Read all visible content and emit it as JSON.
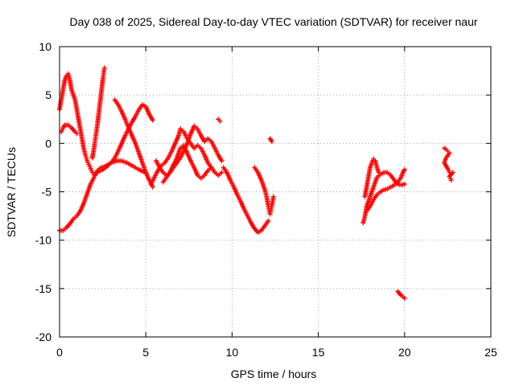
{
  "chart_data": {
    "type": "scatter",
    "title": "Day 038 of 2025, Sidereal Day-to-day VTEC variation (SDTVAR) for receiver naur",
    "xlabel": "GPS time / hours",
    "ylabel": "SDTVAR / TECUs",
    "xlim": [
      0,
      25
    ],
    "ylim": [
      -20,
      10
    ],
    "xticks": [
      0,
      5,
      10,
      15,
      20,
      25
    ],
    "yticks": [
      -20,
      -15,
      -10,
      -5,
      0,
      5,
      10
    ],
    "grid": true,
    "marker": "+",
    "color": "#ff0000",
    "series": [
      {
        "name": "trace-1",
        "points": [
          [
            0.0,
            3.5
          ],
          [
            0.1,
            4.5
          ],
          [
            0.2,
            5.5
          ],
          [
            0.3,
            6.5
          ],
          [
            0.4,
            7.0
          ],
          [
            0.5,
            7.2
          ],
          [
            0.6,
            6.5
          ],
          [
            0.7,
            5.5
          ],
          [
            0.8,
            5.0
          ],
          [
            0.9,
            4.5
          ],
          [
            1.0,
            3.5
          ],
          [
            1.1,
            2.5
          ],
          [
            1.2,
            1.5
          ],
          [
            1.3,
            0.5
          ],
          [
            1.4,
            -0.5
          ],
          [
            1.5,
            -1.2
          ],
          [
            1.6,
            -1.8
          ],
          [
            1.7,
            -2.2
          ],
          [
            1.8,
            -2.6
          ],
          [
            1.9,
            -3.0
          ],
          [
            2.0,
            -3.2
          ],
          [
            2.2,
            -3.0
          ],
          [
            2.5,
            -2.7
          ],
          [
            2.8,
            -2.3
          ],
          [
            3.0,
            -2.0
          ],
          [
            3.3,
            -1.8
          ],
          [
            3.6,
            -1.8
          ],
          [
            3.9,
            -2.0
          ],
          [
            4.2,
            -2.3
          ],
          [
            4.5,
            -2.6
          ],
          [
            4.8,
            -2.9
          ],
          [
            5.0,
            -3.0
          ]
        ]
      },
      {
        "name": "trace-2",
        "points": [
          [
            0.0,
            -9.0
          ],
          [
            0.2,
            -9.0
          ],
          [
            0.4,
            -8.7
          ],
          [
            0.6,
            -8.3
          ],
          [
            0.8,
            -7.8
          ],
          [
            1.0,
            -7.5
          ],
          [
            1.2,
            -7.0
          ],
          [
            1.4,
            -6.2
          ],
          [
            1.6,
            -5.2
          ],
          [
            1.8,
            -4.2
          ],
          [
            2.0,
            -3.5
          ],
          [
            2.2,
            -2.8
          ],
          [
            2.4,
            -2.5
          ],
          [
            2.6,
            -2.4
          ],
          [
            2.8,
            -2.2
          ],
          [
            3.0,
            -2.0
          ],
          [
            3.2,
            -1.5
          ],
          [
            3.4,
            -0.8
          ],
          [
            3.6,
            0.0
          ],
          [
            3.8,
            0.8
          ],
          [
            4.0,
            1.5
          ],
          [
            4.2,
            2.2
          ],
          [
            4.4,
            2.8
          ],
          [
            4.6,
            3.5
          ],
          [
            4.8,
            4.0
          ],
          [
            5.0,
            3.8
          ],
          [
            5.2,
            3.0
          ],
          [
            5.4,
            2.4
          ]
        ]
      },
      {
        "name": "trace-3",
        "points": [
          [
            0.1,
            1.2
          ],
          [
            0.2,
            1.6
          ],
          [
            0.3,
            1.9
          ],
          [
            0.5,
            1.9
          ],
          [
            0.7,
            1.6
          ],
          [
            0.9,
            1.2
          ],
          [
            1.0,
            1.0
          ]
        ]
      },
      {
        "name": "trace-4",
        "points": [
          [
            1.9,
            -1.5
          ],
          [
            2.0,
            -0.5
          ],
          [
            2.1,
            0.8
          ],
          [
            2.2,
            2.0
          ],
          [
            2.3,
            3.5
          ],
          [
            2.4,
            5.0
          ],
          [
            2.5,
            6.5
          ],
          [
            2.6,
            7.8
          ]
        ]
      },
      {
        "name": "trace-5",
        "points": [
          [
            3.2,
            4.5
          ],
          [
            3.4,
            4.0
          ],
          [
            3.6,
            3.3
          ],
          [
            3.8,
            2.5
          ],
          [
            4.0,
            1.6
          ],
          [
            4.2,
            0.8
          ],
          [
            4.4,
            0.0
          ],
          [
            4.6,
            -1.0
          ],
          [
            4.8,
            -2.0
          ],
          [
            5.0,
            -3.0
          ],
          [
            5.2,
            -3.8
          ],
          [
            5.4,
            -4.5
          ]
        ]
      },
      {
        "name": "trace-6",
        "points": [
          [
            5.3,
            -4.2
          ],
          [
            5.5,
            -3.5
          ],
          [
            5.7,
            -2.8
          ],
          [
            5.9,
            -2.3
          ],
          [
            6.1,
            -2.0
          ],
          [
            6.3,
            -1.5
          ],
          [
            6.5,
            -0.8
          ],
          [
            6.7,
            0.0
          ],
          [
            6.9,
            0.8
          ],
          [
            7.0,
            1.5
          ],
          [
            7.2,
            1.2
          ],
          [
            7.4,
            0.5
          ],
          [
            7.6,
            0.0
          ],
          [
            7.8,
            -0.5
          ],
          [
            8.0,
            -0.2
          ],
          [
            8.2,
            -0.5
          ],
          [
            8.4,
            -1.2
          ],
          [
            8.6,
            -2.0
          ],
          [
            8.8,
            -2.5
          ],
          [
            9.0,
            -3.0
          ],
          [
            9.2,
            -3.3
          ],
          [
            9.4,
            -3.0
          ]
        ]
      },
      {
        "name": "trace-7",
        "points": [
          [
            5.6,
            -1.8
          ],
          [
            5.8,
            -2.5
          ],
          [
            6.0,
            -3.0
          ],
          [
            6.2,
            -3.3
          ],
          [
            6.4,
            -3.0
          ],
          [
            6.6,
            -2.5
          ],
          [
            6.8,
            -2.0
          ],
          [
            7.0,
            -1.5
          ],
          [
            7.2,
            -0.8
          ],
          [
            7.4,
            0.0
          ],
          [
            7.6,
            1.0
          ],
          [
            7.8,
            1.8
          ],
          [
            8.0,
            1.5
          ],
          [
            8.2,
            0.8
          ],
          [
            8.4,
            0.2
          ],
          [
            8.6,
            0.5
          ],
          [
            8.8,
            0.2
          ],
          [
            9.0,
            -0.5
          ],
          [
            9.2,
            -1.2
          ],
          [
            9.4,
            -1.8
          ]
        ]
      },
      {
        "name": "trace-8",
        "points": [
          [
            6.0,
            -4.0
          ],
          [
            6.2,
            -3.5
          ],
          [
            6.4,
            -3.0
          ],
          [
            6.6,
            -2.2
          ],
          [
            6.8,
            -1.5
          ],
          [
            7.0,
            -0.5
          ],
          [
            7.2,
            -0.2
          ],
          [
            7.4,
            -1.0
          ],
          [
            7.6,
            -1.8
          ],
          [
            7.8,
            -2.5
          ],
          [
            8.0,
            -3.3
          ],
          [
            8.2,
            -3.6
          ],
          [
            8.4,
            -3.3
          ],
          [
            8.6,
            -2.8
          ],
          [
            8.8,
            -2.5
          ]
        ]
      },
      {
        "name": "trace-9",
        "points": [
          [
            9.2,
            2.5
          ],
          [
            9.3,
            2.3
          ]
        ]
      },
      {
        "name": "trace-10",
        "points": [
          [
            9.5,
            -2.5
          ],
          [
            9.7,
            -3.0
          ],
          [
            9.9,
            -3.8
          ],
          [
            10.1,
            -4.5
          ],
          [
            10.3,
            -5.3
          ],
          [
            10.5,
            -6.0
          ],
          [
            10.7,
            -6.8
          ],
          [
            10.9,
            -7.5
          ],
          [
            11.1,
            -8.2
          ],
          [
            11.3,
            -8.8
          ],
          [
            11.5,
            -9.2
          ],
          [
            11.7,
            -9.0
          ],
          [
            11.9,
            -8.5
          ],
          [
            12.1,
            -8.0
          ]
        ]
      },
      {
        "name": "trace-11",
        "points": [
          [
            11.3,
            -2.5
          ],
          [
            11.5,
            -3.0
          ],
          [
            11.7,
            -3.8
          ],
          [
            11.9,
            -4.8
          ],
          [
            12.0,
            -5.5
          ],
          [
            12.1,
            -6.5
          ],
          [
            12.2,
            -7.3
          ],
          [
            12.3,
            -6.5
          ],
          [
            12.4,
            -5.5
          ]
        ]
      },
      {
        "name": "trace-12",
        "points": [
          [
            12.2,
            0.5
          ],
          [
            12.3,
            0.2
          ]
        ]
      },
      {
        "name": "trace-13",
        "points": [
          [
            17.6,
            -8.2
          ],
          [
            17.7,
            -7.5
          ],
          [
            17.8,
            -6.5
          ],
          [
            18.0,
            -5.5
          ],
          [
            18.2,
            -4.5
          ],
          [
            18.4,
            -3.5
          ],
          [
            18.6,
            -3.2
          ],
          [
            18.8,
            -3.0
          ],
          [
            19.0,
            -3.0
          ],
          [
            19.2,
            -3.3
          ],
          [
            19.4,
            -3.8
          ],
          [
            19.6,
            -4.2
          ],
          [
            19.8,
            -4.3
          ],
          [
            20.0,
            -4.2
          ]
        ]
      },
      {
        "name": "trace-14",
        "points": [
          [
            17.7,
            -5.5
          ],
          [
            17.8,
            -4.5
          ],
          [
            17.9,
            -3.5
          ],
          [
            18.0,
            -2.5
          ],
          [
            18.1,
            -2.0
          ],
          [
            18.2,
            -1.6
          ],
          [
            18.3,
            -1.8
          ],
          [
            18.4,
            -2.5
          ],
          [
            18.5,
            -3.0
          ]
        ]
      },
      {
        "name": "trace-15",
        "points": [
          [
            17.8,
            -7.0
          ],
          [
            18.0,
            -6.5
          ],
          [
            18.2,
            -5.8
          ],
          [
            18.4,
            -5.3
          ],
          [
            18.6,
            -5.0
          ],
          [
            18.8,
            -4.8
          ],
          [
            19.0,
            -4.7
          ],
          [
            19.2,
            -4.5
          ],
          [
            19.4,
            -4.3
          ],
          [
            19.6,
            -4.0
          ],
          [
            19.8,
            -3.5
          ],
          [
            19.9,
            -3.0
          ],
          [
            20.0,
            -2.7
          ]
        ]
      },
      {
        "name": "trace-16",
        "points": [
          [
            19.6,
            -15.3
          ],
          [
            19.8,
            -15.7
          ],
          [
            20.0,
            -16.0
          ]
        ]
      },
      {
        "name": "trace-17",
        "points": [
          [
            22.3,
            -0.5
          ],
          [
            22.4,
            -0.6
          ],
          [
            22.5,
            -0.8
          ],
          [
            22.6,
            -1.0
          ],
          [
            22.4,
            -1.5
          ],
          [
            22.3,
            -2.0
          ],
          [
            22.4,
            -2.3
          ],
          [
            22.5,
            -2.6
          ],
          [
            22.6,
            -3.0
          ],
          [
            22.7,
            -3.2
          ],
          [
            22.8,
            -3.0
          ],
          [
            22.6,
            -3.4
          ],
          [
            22.7,
            -3.8
          ]
        ]
      }
    ]
  }
}
